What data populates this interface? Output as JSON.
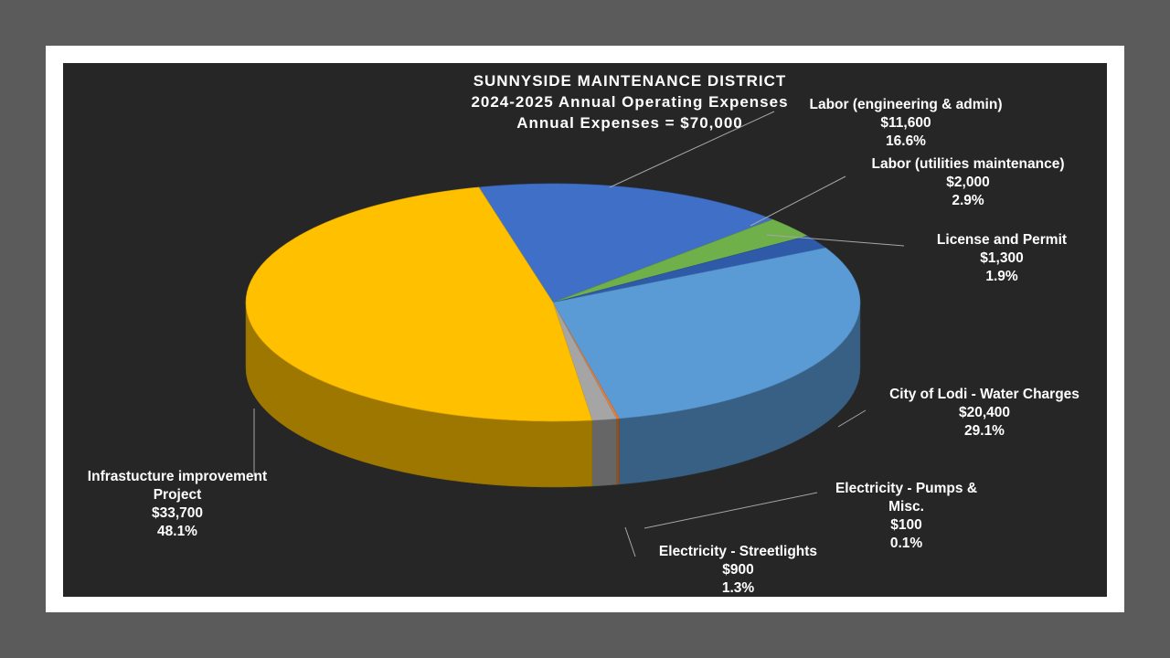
{
  "chart_data": {
    "type": "pie",
    "title": [
      "SUNNYSIDE MAINTENANCE DISTRICT",
      "2024-2025 Annual Operating Expenses",
      "Annual Expenses = $70,000"
    ],
    "slices": [
      {
        "label": "Labor (engineering & admin)",
        "value_label": "$11,600",
        "value": 11600,
        "percent_label": "16.6%",
        "color": "#3f6fc6"
      },
      {
        "label": "Labor (utilities maintenance)",
        "value_label": "$2,000",
        "value": 2000,
        "percent_label": "2.9%",
        "color": "#6fb04a"
      },
      {
        "label": "License and Permit",
        "value_label": "$1,300",
        "value": 1300,
        "percent_label": "1.9%",
        "color": "#2e5aa8"
      },
      {
        "label": "City of Lodi - Water Charges",
        "value_label": "$20,400",
        "value": 20400,
        "percent_label": "29.1%",
        "color": "#5b9bd5"
      },
      {
        "label": "Electricity - Pumps & Misc.",
        "value_label": "$100",
        "value": 100,
        "percent_label": "0.1%",
        "color": "#ed7d31"
      },
      {
        "label": "Electricity - Streetlights",
        "value_label": "$900",
        "value": 900,
        "percent_label": "1.3%",
        "color": "#a5a5a5"
      },
      {
        "label": "Infrastucture improvement Project",
        "value_label": "$33,700",
        "value": 33700,
        "percent_label": "48.1%",
        "color": "#ffc000"
      }
    ]
  }
}
